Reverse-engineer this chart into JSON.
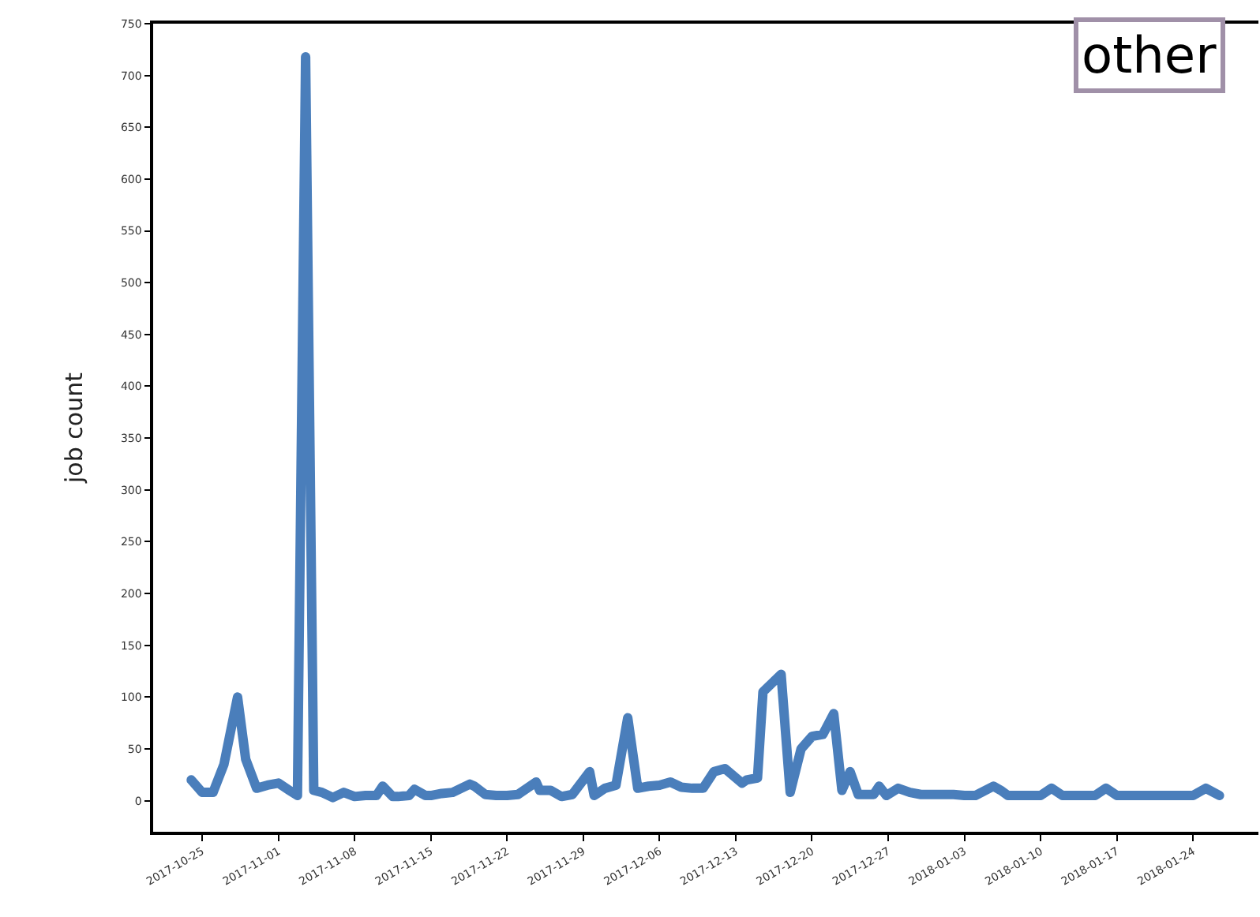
{
  "chart_data": {
    "type": "line",
    "title": "other",
    "ylabel": "job count",
    "x": [
      "2017-10-24",
      "2017-10-25",
      "2017-10-26",
      "2017-10-27",
      "2017-10-28T06:00",
      "2017-10-29",
      "2017-10-30",
      "2017-10-31",
      "2017-11-01",
      "2017-11-02",
      "2017-11-02T18:00",
      "2017-11-03T12:00",
      "2017-11-04T06:00",
      "2017-11-05",
      "2017-11-06",
      "2017-11-07",
      "2017-11-08",
      "2017-11-09",
      "2017-11-10",
      "2017-11-10T14:00",
      "2017-11-11T12:00",
      "2017-11-12",
      "2017-11-13",
      "2017-11-13T12:00",
      "2017-11-14T12:00",
      "2017-11-15",
      "2017-11-16",
      "2017-11-17",
      "2017-11-18T14:00",
      "2017-11-19",
      "2017-11-20",
      "2017-11-21",
      "2017-11-22",
      "2017-11-23",
      "2017-11-24T16:00",
      "2017-11-25",
      "2017-11-26",
      "2017-11-27",
      "2017-11-28",
      "2017-11-29T14:00",
      "2017-11-30",
      "2017-12-01",
      "2017-12-02",
      "2017-12-03T02:00",
      "2017-12-04",
      "2017-12-05",
      "2017-12-06",
      "2017-12-07",
      "2017-12-08",
      "2017-12-09",
      "2017-12-10",
      "2017-12-11",
      "2017-12-12",
      "2017-12-13T14:00",
      "2017-12-14",
      "2017-12-15",
      "2017-12-15T12:00",
      "2017-12-17T04:00",
      "2017-12-18",
      "2017-12-19",
      "2017-12-20",
      "2017-12-21",
      "2017-12-22",
      "2017-12-22T18:00",
      "2017-12-23T12:00",
      "2017-12-24T06:00",
      "2017-12-25T16:00",
      "2017-12-26T04:00",
      "2017-12-26T20:00",
      "2017-12-27T22:00",
      "2017-12-29",
      "2017-12-30",
      "2017-12-31",
      "2018-01-01",
      "2018-01-02",
      "2018-01-03",
      "2018-01-04",
      "2018-01-05T16:00",
      "2018-01-06T08:00",
      "2018-01-07",
      "2018-01-08",
      "2018-01-09",
      "2018-01-10",
      "2018-01-11",
      "2018-01-12",
      "2018-01-13",
      "2018-01-14",
      "2018-01-15",
      "2018-01-16",
      "2018-01-17",
      "2018-01-18",
      "2018-01-19",
      "2018-01-20",
      "2018-01-21",
      "2018-01-22",
      "2018-01-23",
      "2018-01-24",
      "2018-01-25T04:00",
      "2018-01-26T10:00"
    ],
    "series": [
      {
        "color": "#4a7ebb",
        "values": [
          20,
          8,
          8,
          35,
          100,
          40,
          12,
          15,
          17,
          10,
          5,
          718,
          10,
          8,
          3,
          8,
          4,
          5,
          5,
          14,
          4,
          4,
          5,
          11,
          5,
          5,
          7,
          8,
          16,
          14,
          6,
          5,
          5,
          6,
          18,
          10,
          10,
          4,
          6,
          28,
          5,
          12,
          15,
          80,
          12,
          14,
          15,
          18,
          13,
          12,
          12,
          28,
          31,
          17,
          20,
          22,
          105,
          122,
          8,
          50,
          62,
          64,
          84,
          10,
          28,
          6,
          6,
          14,
          5,
          12,
          8,
          6,
          6,
          6,
          6,
          5,
          5,
          14,
          10,
          5,
          5,
          5,
          5,
          12,
          5,
          5,
          5,
          5,
          12,
          5,
          5,
          5,
          5,
          5,
          5,
          5,
          5,
          12,
          5
        ]
      }
    ],
    "xlim": [
      "2017-10-20T12:00",
      "2018-01-30"
    ],
    "xticks": [
      {
        "value": "2017-10-25",
        "label": "2017-10-25"
      },
      {
        "value": "2017-11-01",
        "label": "2017-11-01"
      },
      {
        "value": "2017-11-08",
        "label": "2017-11-08"
      },
      {
        "value": "2017-11-15",
        "label": "2017-11-15"
      },
      {
        "value": "2017-11-22",
        "label": "2017-11-22"
      },
      {
        "value": "2017-11-29",
        "label": "2017-11-29"
      },
      {
        "value": "2017-12-06",
        "label": "2017-12-06"
      },
      {
        "value": "2017-12-13",
        "label": "2017-12-13"
      },
      {
        "value": "2017-12-20",
        "label": "2017-12-20"
      },
      {
        "value": "2017-12-27",
        "label": "2017-12-27"
      },
      {
        "value": "2018-01-03",
        "label": "2018-01-03"
      },
      {
        "value": "2018-01-10",
        "label": "2018-01-10"
      },
      {
        "value": "2018-01-17",
        "label": "2018-01-17"
      },
      {
        "value": "2018-01-24",
        "label": "2018-01-24"
      }
    ],
    "ylim": [
      -30,
      750
    ],
    "yticks": [
      0,
      50,
      100,
      150,
      200,
      250,
      300,
      350,
      400,
      450,
      500,
      550,
      600,
      650,
      700,
      750
    ],
    "grid": false,
    "marker": "none",
    "line_style": "solid"
  }
}
